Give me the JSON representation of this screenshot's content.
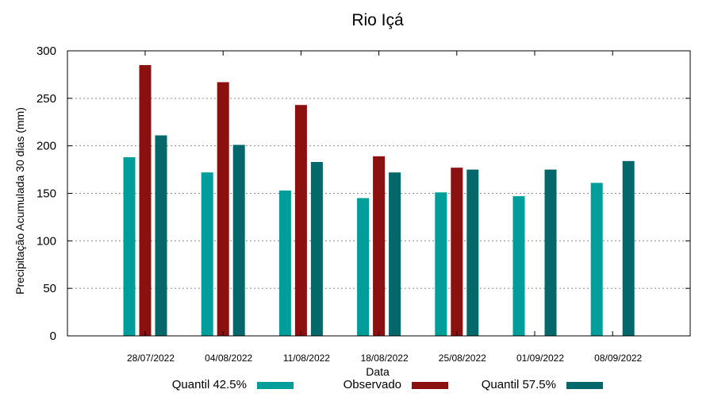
{
  "chart_data": {
    "type": "bar",
    "title": "Rio Içá",
    "xlabel": "Data",
    "ylabel": "Precipitação Acumulada 30 dias (mm)",
    "ylim": [
      0,
      300
    ],
    "yticks": [
      0,
      50,
      100,
      150,
      200,
      250,
      300
    ],
    "grid": true,
    "legend_position": "bottom",
    "categories": [
      "28/07/2022",
      "04/08/2022",
      "11/08/2022",
      "18/08/2022",
      "25/08/2022",
      "01/09/2022",
      "08/09/2022"
    ],
    "series": [
      {
        "name": "Quantil 42.5%",
        "color": "#009e9a",
        "values": [
          188,
          172,
          153,
          145,
          151,
          147,
          161
        ]
      },
      {
        "name": "Observado",
        "color": "#8b1010",
        "values": [
          285,
          267,
          243,
          189,
          177,
          null,
          null
        ]
      },
      {
        "name": "Quantil 57.5%",
        "color": "#04686a",
        "values": [
          211,
          201,
          183,
          172,
          175,
          175,
          184
        ]
      }
    ]
  }
}
